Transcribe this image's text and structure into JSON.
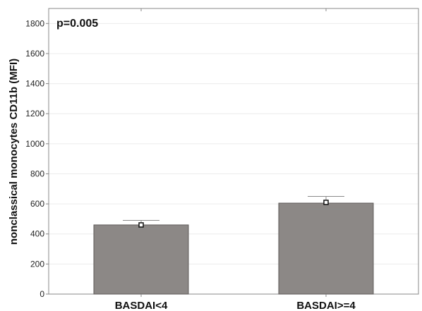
{
  "chart_data": {
    "type": "bar",
    "categories": [
      "BASDAI<4",
      "BASDAI>=4"
    ],
    "values": [
      460,
      605
    ],
    "means": [
      460,
      610
    ],
    "error_low": [
      435,
      565
    ],
    "error_high": [
      490,
      650
    ],
    "ylabel": "nonclassical monocytes CD11b (MFI)",
    "ylim": [
      0,
      1900
    ],
    "yticks": [
      0,
      200,
      400,
      600,
      800,
      1000,
      1200,
      1400,
      1600,
      1800
    ],
    "annotation": "p=0.005",
    "grid": true,
    "colors": {
      "bar": "#8c8886",
      "bar_edge": "#5e5a58",
      "error": "#8a8a8a",
      "axis": "#888888"
    }
  }
}
